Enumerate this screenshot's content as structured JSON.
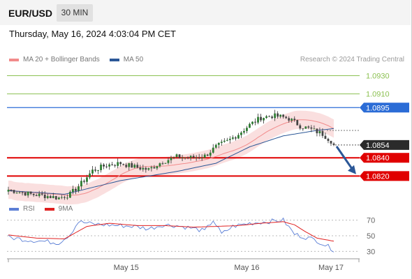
{
  "header": {
    "symbol": "EUR/USD",
    "timeframe": "30 MIN",
    "datetime": "Thursday, May 16, 2024 4:03:04 PM CET",
    "credit": "Research © 2024 Trading Central"
  },
  "legend_main": [
    {
      "label": "MA 20 + Bollinger Bands",
      "color": "#f28b8b"
    },
    {
      "label": "MA 50",
      "color": "#2b5797"
    }
  ],
  "legend_rsi": [
    {
      "label": "RSI",
      "color": "#5b7fd6"
    },
    {
      "label": "9MA",
      "color": "#e02020"
    }
  ],
  "colors": {
    "resistance_green": "#8cc152",
    "pivot_blue": "#2b6cd6",
    "support_red": "#e00000",
    "last_price_bg": "#2b2b2b",
    "candle_up": "#2e7d32",
    "candle_down": "#444444",
    "arrow": "#2b5797"
  },
  "chart_data": {
    "type": "candlestick",
    "instrument": "EUR/USD",
    "interval": "30 MIN",
    "ylim": [
      1.0805,
      1.0938
    ],
    "x_ticks": [
      "May 15",
      "May 16",
      "May 17"
    ],
    "last_price": {
      "value": 1.0854,
      "label": "1.0854"
    },
    "levels": [
      {
        "value": 1.093,
        "label": "1.0930",
        "kind": "resistance"
      },
      {
        "value": 1.091,
        "label": "1.0910",
        "kind": "resistance"
      },
      {
        "value": 1.0895,
        "label": "1.0895",
        "kind": "pivot"
      },
      {
        "value": 1.084,
        "label": "1.0840",
        "kind": "support"
      },
      {
        "value": 1.082,
        "label": "1.0820",
        "kind": "support"
      }
    ],
    "price_key_points": [
      [
        0,
        1.0805
      ],
      [
        8,
        1.08
      ],
      [
        14,
        1.0798
      ],
      [
        18,
        1.0796
      ],
      [
        22,
        1.08
      ],
      [
        26,
        1.0812
      ],
      [
        30,
        1.0826
      ],
      [
        35,
        1.0832
      ],
      [
        40,
        1.0834
      ],
      [
        45,
        1.083
      ],
      [
        50,
        1.0827
      ],
      [
        55,
        1.0836
      ],
      [
        60,
        1.0841
      ],
      [
        65,
        1.084
      ],
      [
        70,
        1.0842
      ],
      [
        74,
        1.0852
      ],
      [
        78,
        1.0858
      ],
      [
        82,
        1.0866
      ],
      [
        86,
        1.0876
      ],
      [
        90,
        1.0884
      ],
      [
        94,
        1.0886
      ],
      [
        97,
        1.0885
      ],
      [
        100,
        1.0883
      ],
      [
        104,
        1.0875
      ],
      [
        108,
        1.0871
      ],
      [
        112,
        1.0866
      ],
      [
        116,
        1.0856
      ]
    ],
    "bollinger_band_width": 0.001,
    "ma50_key_points": [
      [
        0,
        1.0804
      ],
      [
        20,
        1.08
      ],
      [
        40,
        1.0815
      ],
      [
        60,
        1.0825
      ],
      [
        74,
        1.0834
      ],
      [
        86,
        1.0852
      ],
      [
        98,
        1.0864
      ],
      [
        110,
        1.087
      ],
      [
        116,
        1.0872
      ]
    ],
    "forecast_arrow": {
      "from": 1.0854,
      "to": 1.0822
    },
    "rsi": {
      "ticks": [
        70,
        50,
        30
      ],
      "ylim": [
        25,
        75
      ],
      "rsi_key_points": [
        [
          0,
          48
        ],
        [
          6,
          45
        ],
        [
          12,
          43
        ],
        [
          18,
          41
        ],
        [
          22,
          52
        ],
        [
          25,
          68
        ],
        [
          30,
          65
        ],
        [
          35,
          64
        ],
        [
          40,
          63
        ],
        [
          45,
          62
        ],
        [
          50,
          59
        ],
        [
          55,
          64
        ],
        [
          60,
          63
        ],
        [
          65,
          60
        ],
        [
          70,
          56
        ],
        [
          73,
          70
        ],
        [
          76,
          52
        ],
        [
          80,
          62
        ],
        [
          86,
          66
        ],
        [
          92,
          68
        ],
        [
          98,
          70
        ],
        [
          102,
          52
        ],
        [
          106,
          48
        ],
        [
          110,
          44
        ],
        [
          113,
          38
        ],
        [
          116,
          32
        ]
      ],
      "ma9_key_points": [
        [
          0,
          51
        ],
        [
          10,
          47
        ],
        [
          20,
          46
        ],
        [
          28,
          62
        ],
        [
          36,
          66
        ],
        [
          46,
          63
        ],
        [
          56,
          63
        ],
        [
          66,
          61
        ],
        [
          74,
          62
        ],
        [
          82,
          63
        ],
        [
          90,
          66
        ],
        [
          98,
          68
        ],
        [
          102,
          64
        ],
        [
          106,
          55
        ],
        [
          110,
          47
        ],
        [
          116,
          43
        ]
      ]
    }
  }
}
